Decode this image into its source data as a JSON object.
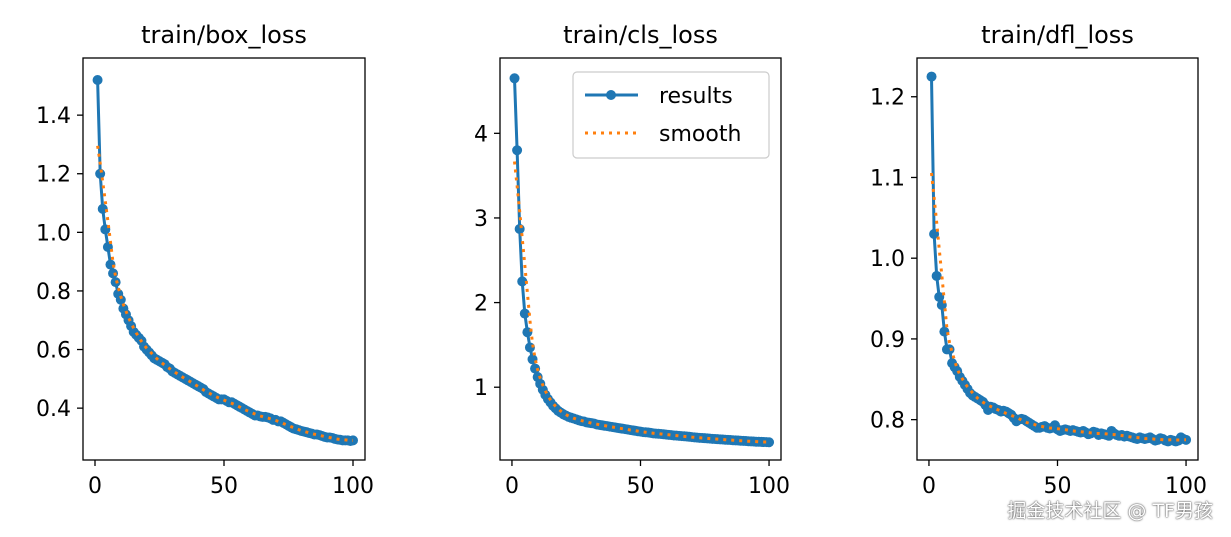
{
  "watermark": "掘金技术社区 @ TF男孩",
  "colors": {
    "results": "#1f77b4",
    "smooth": "#ff7f0e"
  },
  "chart_data": [
    {
      "type": "line",
      "title": "train/box_loss",
      "xlim": [
        -4.65,
        104.65
      ],
      "ylim": [
        0.223,
        1.595
      ],
      "xticks": [
        0,
        50,
        100
      ],
      "yticks": [
        0.4,
        0.6,
        0.8,
        1.0,
        1.2,
        1.4
      ],
      "ytick_labels": [
        "0.4",
        "0.6",
        "0.8",
        "1.0",
        "1.2",
        "1.4"
      ],
      "legend": null,
      "series": [
        {
          "name": "results",
          "values": [
            1.52,
            1.2,
            1.08,
            1.01,
            0.95,
            0.89,
            0.86,
            0.83,
            0.79,
            0.77,
            0.74,
            0.72,
            0.7,
            0.68,
            0.66,
            0.65,
            0.64,
            0.63,
            0.61,
            0.6,
            0.59,
            0.58,
            0.57,
            0.565,
            0.56,
            0.555,
            0.55,
            0.54,
            0.535,
            0.525,
            0.52,
            0.515,
            0.51,
            0.505,
            0.5,
            0.495,
            0.49,
            0.485,
            0.48,
            0.475,
            0.47,
            0.465,
            0.455,
            0.45,
            0.445,
            0.44,
            0.435,
            0.43,
            0.43,
            0.43,
            0.425,
            0.42,
            0.42,
            0.415,
            0.41,
            0.405,
            0.4,
            0.395,
            0.39,
            0.385,
            0.38,
            0.375,
            0.375,
            0.372,
            0.37,
            0.37,
            0.368,
            0.365,
            0.36,
            0.36,
            0.355,
            0.355,
            0.35,
            0.345,
            0.34,
            0.335,
            0.33,
            0.328,
            0.325,
            0.322,
            0.32,
            0.318,
            0.315,
            0.313,
            0.31,
            0.31,
            0.308,
            0.305,
            0.302,
            0.3,
            0.3,
            0.298,
            0.295,
            0.293,
            0.292,
            0.29,
            0.29,
            0.29,
            0.288,
            0.29
          ]
        },
        {
          "name": "smooth",
          "values": "gaussian-smoothed results"
        }
      ]
    },
    {
      "type": "line",
      "title": "train/cls_loss",
      "xlim": [
        -4.65,
        104.65
      ],
      "ylim": [
        0.14,
        4.89
      ],
      "xticks": [
        0,
        50,
        100
      ],
      "yticks": [
        1,
        2,
        3,
        4
      ],
      "ytick_labels": [
        "1",
        "2",
        "3",
        "4"
      ],
      "legend": {
        "placement": "upper right",
        "entries": [
          "results",
          "smooth"
        ]
      },
      "series": [
        {
          "name": "results",
          "values": [
            4.65,
            3.8,
            2.87,
            2.25,
            1.87,
            1.65,
            1.47,
            1.33,
            1.22,
            1.12,
            1.04,
            0.97,
            0.91,
            0.86,
            0.82,
            0.78,
            0.75,
            0.72,
            0.7,
            0.68,
            0.665,
            0.65,
            0.64,
            0.63,
            0.62,
            0.61,
            0.6,
            0.595,
            0.585,
            0.58,
            0.575,
            0.57,
            0.56,
            0.555,
            0.55,
            0.545,
            0.54,
            0.535,
            0.53,
            0.525,
            0.52,
            0.515,
            0.51,
            0.505,
            0.5,
            0.495,
            0.49,
            0.485,
            0.48,
            0.475,
            0.47,
            0.468,
            0.465,
            0.46,
            0.455,
            0.452,
            0.45,
            0.447,
            0.444,
            0.44,
            0.437,
            0.434,
            0.43,
            0.428,
            0.425,
            0.422,
            0.42,
            0.417,
            0.414,
            0.41,
            0.408,
            0.405,
            0.402,
            0.4,
            0.398,
            0.395,
            0.393,
            0.39,
            0.388,
            0.386,
            0.384,
            0.382,
            0.38,
            0.378,
            0.376,
            0.374,
            0.372,
            0.37,
            0.368,
            0.366,
            0.364,
            0.362,
            0.36,
            0.358,
            0.356,
            0.355,
            0.354,
            0.352,
            0.351,
            0.35
          ]
        },
        {
          "name": "smooth",
          "values": "gaussian-smoothed results"
        }
      ]
    },
    {
      "type": "line",
      "title": "train/dfl_loss",
      "xlim": [
        -4.65,
        104.65
      ],
      "ylim": [
        0.75,
        1.248
      ],
      "xticks": [
        0,
        50,
        100
      ],
      "yticks": [
        0.8,
        0.9,
        1.0,
        1.1,
        1.2
      ],
      "ytick_labels": [
        "0.8",
        "0.9",
        "1.0",
        "1.1",
        "1.2"
      ],
      "legend": null,
      "series": [
        {
          "name": "results",
          "values": [
            1.225,
            1.03,
            0.978,
            0.952,
            0.942,
            0.909,
            0.887,
            0.887,
            0.87,
            0.865,
            0.86,
            0.853,
            0.848,
            0.843,
            0.838,
            0.833,
            0.83,
            0.828,
            0.826,
            0.824,
            0.822,
            0.818,
            0.812,
            0.816,
            0.815,
            0.813,
            0.812,
            0.81,
            0.811,
            0.81,
            0.808,
            0.806,
            0.802,
            0.798,
            0.8,
            0.801,
            0.8,
            0.798,
            0.796,
            0.794,
            0.792,
            0.79,
            0.79,
            0.791,
            0.792,
            0.79,
            0.789,
            0.79,
            0.793,
            0.788,
            0.786,
            0.787,
            0.788,
            0.787,
            0.786,
            0.787,
            0.786,
            0.785,
            0.784,
            0.786,
            0.784,
            0.782,
            0.783,
            0.785,
            0.784,
            0.781,
            0.783,
            0.782,
            0.781,
            0.78,
            0.786,
            0.783,
            0.781,
            0.78,
            0.781,
            0.779,
            0.78,
            0.779,
            0.778,
            0.777,
            0.776,
            0.778,
            0.777,
            0.776,
            0.777,
            0.778,
            0.776,
            0.774,
            0.775,
            0.777,
            0.776,
            0.774,
            0.773,
            0.775,
            0.774,
            0.773,
            0.774,
            0.778,
            0.776,
            0.775
          ]
        },
        {
          "name": "smooth",
          "values": "gaussian-smoothed results"
        }
      ]
    }
  ]
}
